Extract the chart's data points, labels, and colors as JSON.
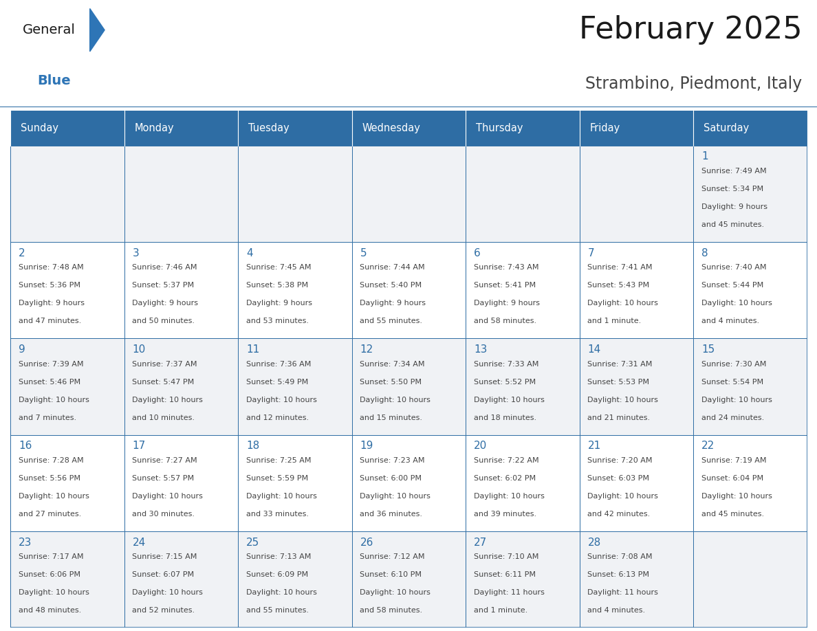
{
  "title": "February 2025",
  "subtitle": "Strambino, Piedmont, Italy",
  "days_of_week": [
    "Sunday",
    "Monday",
    "Tuesday",
    "Wednesday",
    "Thursday",
    "Friday",
    "Saturday"
  ],
  "header_bg": "#2E6DA4",
  "header_text": "#FFFFFF",
  "border_color": "#2E6DA4",
  "day_num_color": "#2E6DA4",
  "text_color": "#444444",
  "title_color": "#1A1A1A",
  "subtitle_color": "#444444",
  "logo_general_color": "#1A1A1A",
  "logo_blue_color": "#2E75B6",
  "cell_bg_odd": "#F0F2F5",
  "cell_bg_even": "#FFFFFF",
  "fig_width": 11.88,
  "fig_height": 9.18,
  "weeks": [
    [
      null,
      null,
      null,
      null,
      null,
      null,
      {
        "day": 1,
        "sunrise": "7:49 AM",
        "sunset": "5:34 PM",
        "daylight1": "9 hours",
        "daylight2": "and 45 minutes."
      }
    ],
    [
      {
        "day": 2,
        "sunrise": "7:48 AM",
        "sunset": "5:36 PM",
        "daylight1": "9 hours",
        "daylight2": "and 47 minutes."
      },
      {
        "day": 3,
        "sunrise": "7:46 AM",
        "sunset": "5:37 PM",
        "daylight1": "9 hours",
        "daylight2": "and 50 minutes."
      },
      {
        "day": 4,
        "sunrise": "7:45 AM",
        "sunset": "5:38 PM",
        "daylight1": "9 hours",
        "daylight2": "and 53 minutes."
      },
      {
        "day": 5,
        "sunrise": "7:44 AM",
        "sunset": "5:40 PM",
        "daylight1": "9 hours",
        "daylight2": "and 55 minutes."
      },
      {
        "day": 6,
        "sunrise": "7:43 AM",
        "sunset": "5:41 PM",
        "daylight1": "9 hours",
        "daylight2": "and 58 minutes."
      },
      {
        "day": 7,
        "sunrise": "7:41 AM",
        "sunset": "5:43 PM",
        "daylight1": "10 hours",
        "daylight2": "and 1 minute."
      },
      {
        "day": 8,
        "sunrise": "7:40 AM",
        "sunset": "5:44 PM",
        "daylight1": "10 hours",
        "daylight2": "and 4 minutes."
      }
    ],
    [
      {
        "day": 9,
        "sunrise": "7:39 AM",
        "sunset": "5:46 PM",
        "daylight1": "10 hours",
        "daylight2": "and 7 minutes."
      },
      {
        "day": 10,
        "sunrise": "7:37 AM",
        "sunset": "5:47 PM",
        "daylight1": "10 hours",
        "daylight2": "and 10 minutes."
      },
      {
        "day": 11,
        "sunrise": "7:36 AM",
        "sunset": "5:49 PM",
        "daylight1": "10 hours",
        "daylight2": "and 12 minutes."
      },
      {
        "day": 12,
        "sunrise": "7:34 AM",
        "sunset": "5:50 PM",
        "daylight1": "10 hours",
        "daylight2": "and 15 minutes."
      },
      {
        "day": 13,
        "sunrise": "7:33 AM",
        "sunset": "5:52 PM",
        "daylight1": "10 hours",
        "daylight2": "and 18 minutes."
      },
      {
        "day": 14,
        "sunrise": "7:31 AM",
        "sunset": "5:53 PM",
        "daylight1": "10 hours",
        "daylight2": "and 21 minutes."
      },
      {
        "day": 15,
        "sunrise": "7:30 AM",
        "sunset": "5:54 PM",
        "daylight1": "10 hours",
        "daylight2": "and 24 minutes."
      }
    ],
    [
      {
        "day": 16,
        "sunrise": "7:28 AM",
        "sunset": "5:56 PM",
        "daylight1": "10 hours",
        "daylight2": "and 27 minutes."
      },
      {
        "day": 17,
        "sunrise": "7:27 AM",
        "sunset": "5:57 PM",
        "daylight1": "10 hours",
        "daylight2": "and 30 minutes."
      },
      {
        "day": 18,
        "sunrise": "7:25 AM",
        "sunset": "5:59 PM",
        "daylight1": "10 hours",
        "daylight2": "and 33 minutes."
      },
      {
        "day": 19,
        "sunrise": "7:23 AM",
        "sunset": "6:00 PM",
        "daylight1": "10 hours",
        "daylight2": "and 36 minutes."
      },
      {
        "day": 20,
        "sunrise": "7:22 AM",
        "sunset": "6:02 PM",
        "daylight1": "10 hours",
        "daylight2": "and 39 minutes."
      },
      {
        "day": 21,
        "sunrise": "7:20 AM",
        "sunset": "6:03 PM",
        "daylight1": "10 hours",
        "daylight2": "and 42 minutes."
      },
      {
        "day": 22,
        "sunrise": "7:19 AM",
        "sunset": "6:04 PM",
        "daylight1": "10 hours",
        "daylight2": "and 45 minutes."
      }
    ],
    [
      {
        "day": 23,
        "sunrise": "7:17 AM",
        "sunset": "6:06 PM",
        "daylight1": "10 hours",
        "daylight2": "and 48 minutes."
      },
      {
        "day": 24,
        "sunrise": "7:15 AM",
        "sunset": "6:07 PM",
        "daylight1": "10 hours",
        "daylight2": "and 52 minutes."
      },
      {
        "day": 25,
        "sunrise": "7:13 AM",
        "sunset": "6:09 PM",
        "daylight1": "10 hours",
        "daylight2": "and 55 minutes."
      },
      {
        "day": 26,
        "sunrise": "7:12 AM",
        "sunset": "6:10 PM",
        "daylight1": "10 hours",
        "daylight2": "and 58 minutes."
      },
      {
        "day": 27,
        "sunrise": "7:10 AM",
        "sunset": "6:11 PM",
        "daylight1": "11 hours",
        "daylight2": "and 1 minute."
      },
      {
        "day": 28,
        "sunrise": "7:08 AM",
        "sunset": "6:13 PM",
        "daylight1": "11 hours",
        "daylight2": "and 4 minutes."
      },
      null
    ]
  ]
}
